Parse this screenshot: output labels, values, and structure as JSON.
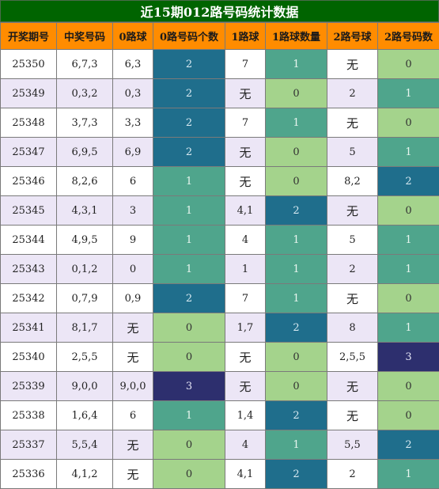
{
  "title": "近15期012路号码统计数据",
  "headers": [
    "开奖期号",
    "中奖号码",
    "0路球",
    "0路号码个数",
    "1路球",
    "1路球数量",
    "2路号球",
    "2路号码数"
  ],
  "rows": [
    {
      "issue": "25350",
      "number": "6,7,3",
      "r0": "6,3",
      "c0": "2",
      "r1": "7",
      "c1": "1",
      "r2": "无",
      "c2": "0"
    },
    {
      "issue": "25349",
      "number": "0,3,2",
      "r0": "0,3",
      "c0": "2",
      "r1": "无",
      "c1": "0",
      "r2": "2",
      "c2": "1"
    },
    {
      "issue": "25348",
      "number": "3,7,3",
      "r0": "3,3",
      "c0": "2",
      "r1": "7",
      "c1": "1",
      "r2": "无",
      "c2": "0"
    },
    {
      "issue": "25347",
      "number": "6,9,5",
      "r0": "6,9",
      "c0": "2",
      "r1": "无",
      "c1": "0",
      "r2": "5",
      "c2": "1"
    },
    {
      "issue": "25346",
      "number": "8,2,6",
      "r0": "6",
      "c0": "1",
      "r1": "无",
      "c1": "0",
      "r2": "8,2",
      "c2": "2"
    },
    {
      "issue": "25345",
      "number": "4,3,1",
      "r0": "3",
      "c0": "1",
      "r1": "4,1",
      "c1": "2",
      "r2": "无",
      "c2": "0"
    },
    {
      "issue": "25344",
      "number": "4,9,5",
      "r0": "9",
      "c0": "1",
      "r1": "4",
      "c1": "1",
      "r2": "5",
      "c2": "1"
    },
    {
      "issue": "25343",
      "number": "0,1,2",
      "r0": "0",
      "c0": "1",
      "r1": "1",
      "c1": "1",
      "r2": "2",
      "c2": "1"
    },
    {
      "issue": "25342",
      "number": "0,7,9",
      "r0": "0,9",
      "c0": "2",
      "r1": "7",
      "c1": "1",
      "r2": "无",
      "c2": "0"
    },
    {
      "issue": "25341",
      "number": "8,1,7",
      "r0": "无",
      "c0": "0",
      "r1": "1,7",
      "c1": "2",
      "r2": "8",
      "c2": "1"
    },
    {
      "issue": "25340",
      "number": "2,5,5",
      "r0": "无",
      "c0": "0",
      "r1": "无",
      "c1": "0",
      "r2": "2,5,5",
      "c2": "3"
    },
    {
      "issue": "25339",
      "number": "9,0,0",
      "r0": "9,0,0",
      "c0": "3",
      "r1": "无",
      "c1": "0",
      "r2": "无",
      "c2": "0"
    },
    {
      "issue": "25338",
      "number": "1,6,4",
      "r0": "6",
      "c0": "1",
      "r1": "1,4",
      "c1": "2",
      "r2": "无",
      "c2": "0"
    },
    {
      "issue": "25337",
      "number": "5,5,4",
      "r0": "无",
      "c0": "0",
      "r1": "4",
      "c1": "1",
      "r2": "5,5",
      "c2": "2"
    },
    {
      "issue": "25336",
      "number": "4,1,2",
      "r0": "无",
      "c0": "0",
      "r1": "4,1",
      "c1": "2",
      "r2": "2",
      "c2": "1"
    }
  ],
  "colors": {
    "title_bg": "#006400",
    "header_bg": "#ff8c00",
    "row_alt_bg": "#ece6f6",
    "count_0": "#a4d38c",
    "count_1": "#4fa58c",
    "count_2": "#1f6e8c",
    "count_3": "#2d2f6e"
  }
}
